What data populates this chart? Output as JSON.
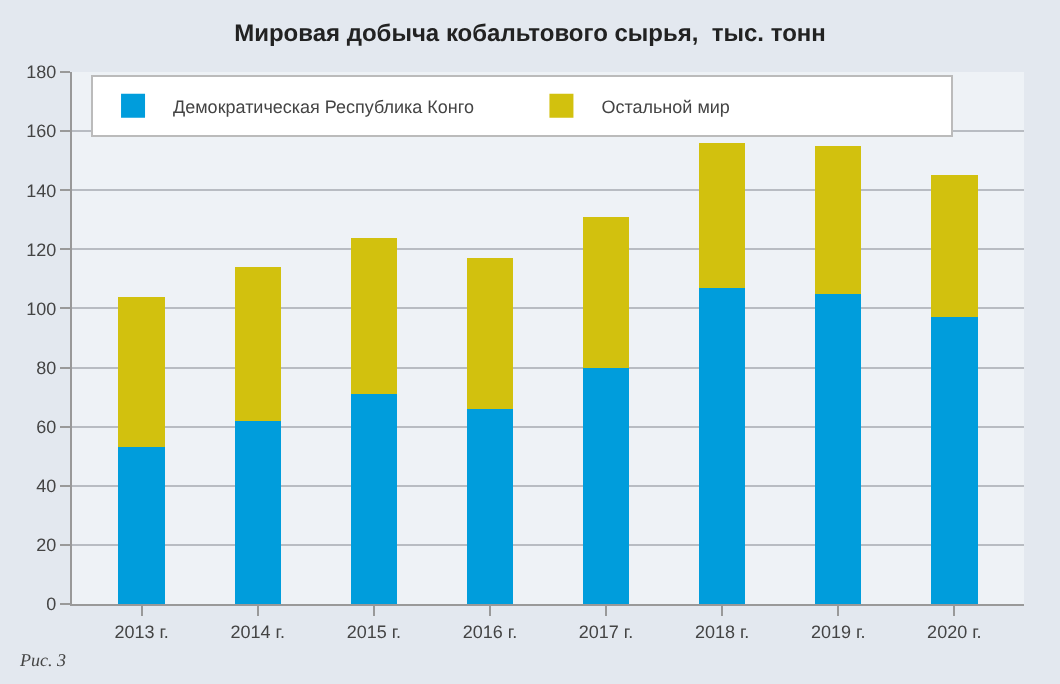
{
  "chart_data": {
    "type": "bar",
    "title": "Мировая добыча кобальтового сырья,  тыс. тонн",
    "categories": [
      "2013 г.",
      "2014 г.",
      "2015 г.",
      "2016 г.",
      "2017 г.",
      "2018 г.",
      "2019 г.",
      "2020 г."
    ],
    "series": [
      {
        "name": "Демократическая Республика Конго",
        "color": "#009ddc",
        "values": [
          53,
          62,
          71,
          66,
          80,
          107,
          105,
          97
        ]
      },
      {
        "name": "Остальной мир",
        "color": "#d2c10e",
        "values": [
          51,
          52,
          53,
          51,
          51,
          49,
          50,
          48
        ]
      }
    ],
    "stacked": true,
    "ylim": [
      0,
      180
    ],
    "yticks": [
      0,
      20,
      40,
      60,
      80,
      100,
      120,
      140,
      160,
      180
    ],
    "grid": "y",
    "legend": "top",
    "annotations": [
      "Рис. 3"
    ]
  }
}
